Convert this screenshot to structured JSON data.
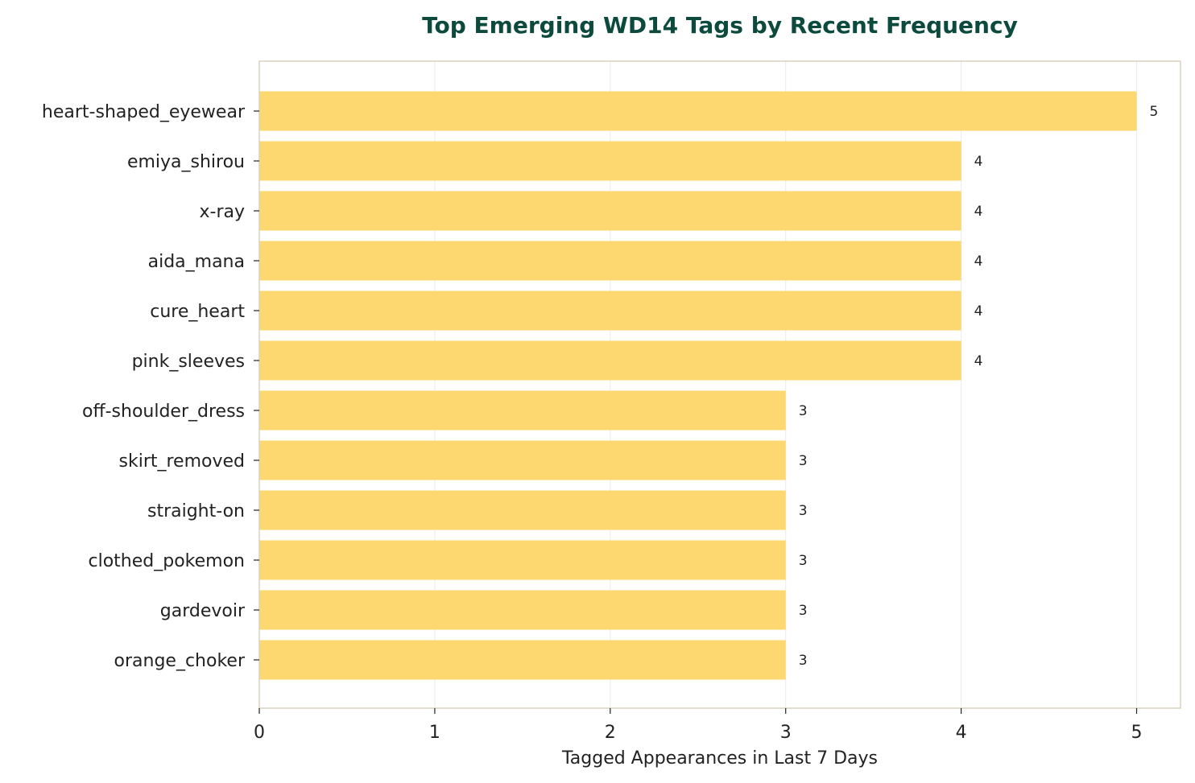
{
  "chart_data": {
    "type": "bar",
    "orientation": "horizontal",
    "title": "Top Emerging WD14 Tags by Recent Frequency",
    "xlabel": "Tagged Appearances in Last 7 Days",
    "ylabel": "",
    "categories": [
      "heart-shaped_eyewear",
      "emiya_shirou",
      "x-ray",
      "aida_mana",
      "cure_heart",
      "pink_sleeves",
      "off-shoulder_dress",
      "skirt_removed",
      "straight-on",
      "clothed_pokemon",
      "gardevoir",
      "orange_choker"
    ],
    "values": [
      5,
      4,
      4,
      4,
      4,
      4,
      3,
      3,
      3,
      3,
      3,
      3
    ],
    "data_labels": [
      "5",
      "4",
      "4",
      "4",
      "4",
      "4",
      "3",
      "3",
      "3",
      "3",
      "3",
      "3"
    ],
    "xlim": [
      0,
      5.25
    ],
    "xticks": [
      0,
      1,
      2,
      3,
      4,
      5
    ],
    "xtick_labels": [
      "0",
      "1",
      "2",
      "3",
      "4",
      "5"
    ],
    "grid": "vertical",
    "colors": {
      "bar": "#fdd76f",
      "title": "#0d4a3e",
      "frame": "#d8d2bd",
      "grid": "#ebebeb",
      "text": "#222222"
    }
  }
}
